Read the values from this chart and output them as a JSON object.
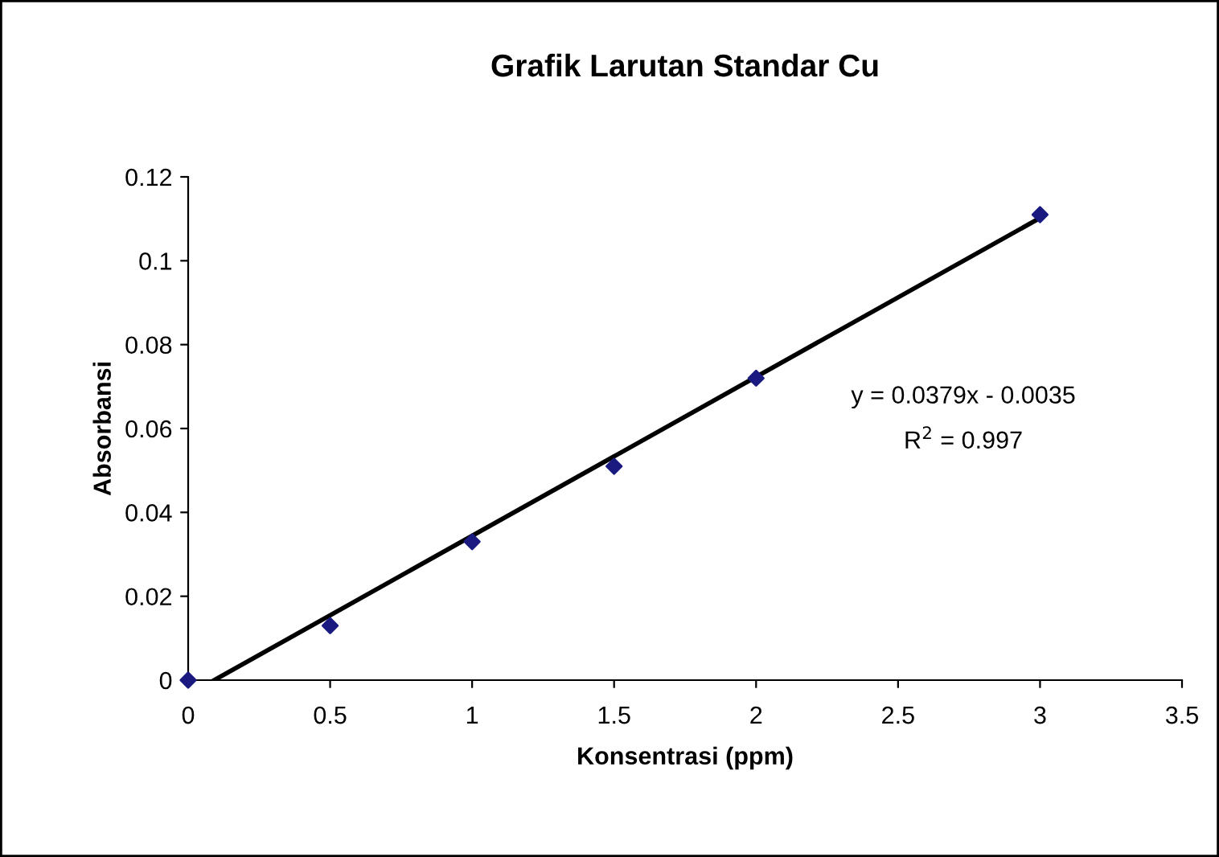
{
  "chart_data": {
    "type": "scatter",
    "title": "Grafik Larutan Standar Cu",
    "xlabel": "Konsentrasi (ppm)",
    "ylabel": "Absorbansi",
    "xlim": [
      0,
      3.5
    ],
    "xticks": [
      0,
      0.5,
      1,
      1.5,
      2,
      2.5,
      3,
      3.5
    ],
    "ylim": [
      0,
      0.12
    ],
    "yticks": [
      0,
      0.02,
      0.04,
      0.06,
      0.08,
      0.1,
      0.12
    ],
    "grid": false,
    "legend": false,
    "series": [
      {
        "color": "#1a1a80",
        "marker": "diamond",
        "x": [
          0,
          0.5,
          1,
          1.5,
          2,
          3
        ],
        "values": [
          0,
          0.013,
          0.033,
          0.051,
          0.072,
          0.111
        ]
      },
      {
        "type": "line",
        "color": "#000000",
        "marker": "none",
        "line_style": "solid",
        "x": [
          0.092,
          3
        ],
        "values": [
          0,
          0.1102
        ]
      }
    ],
    "annotations": [
      "y = 0.0379x - 0.0035",
      "R$^{2}$ = 0.997"
    ]
  }
}
